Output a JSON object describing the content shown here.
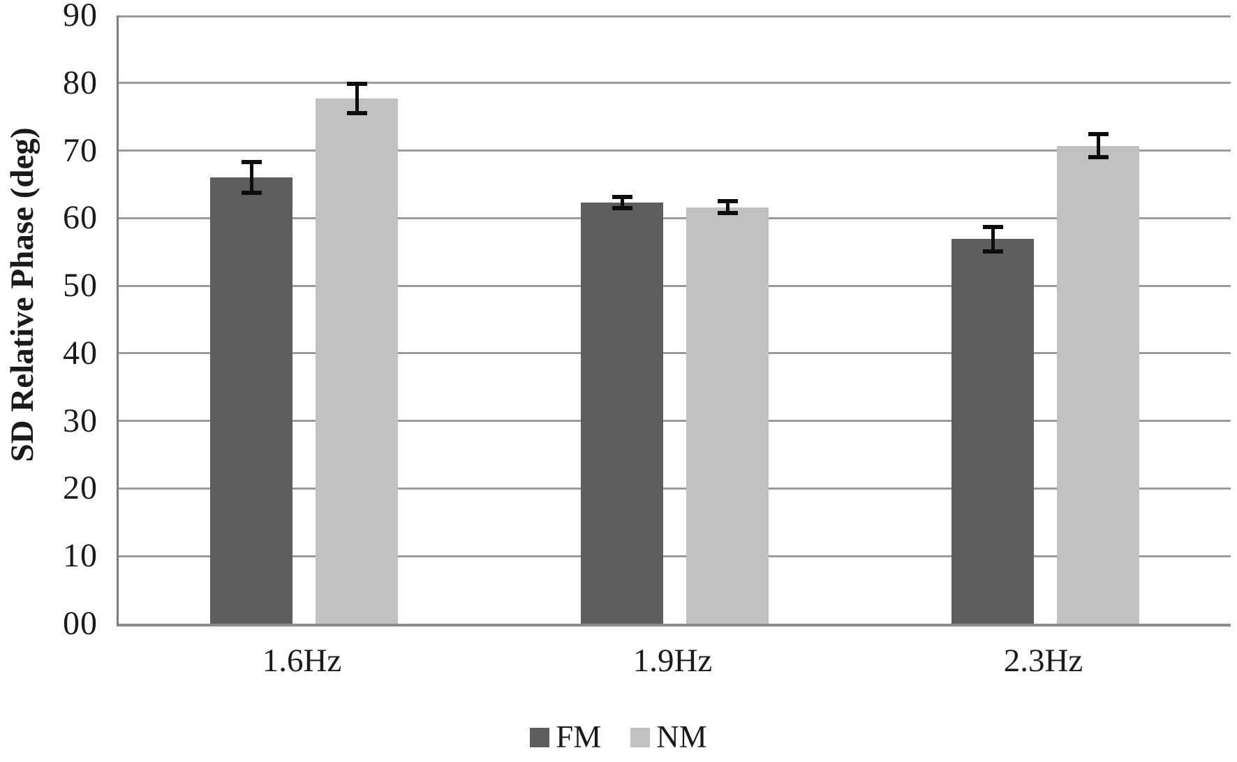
{
  "chart_data": {
    "type": "bar",
    "title": "",
    "categories": [
      "1.6Hz",
      "1.9Hz",
      "2.3Hz"
    ],
    "series": [
      {
        "name": "FM",
        "color": "#5d5d5d",
        "values": [
          66.0,
          62.3,
          56.9
        ],
        "errors": [
          2.6,
          1.1,
          2.1
        ]
      },
      {
        "name": "NM",
        "color": "#c1c1c1",
        "values": [
          77.7,
          61.6,
          70.7
        ],
        "errors": [
          2.5,
          1.2,
          2.0
        ]
      }
    ],
    "xlabel": "",
    "ylabel": "SD Relative Phase (deg)",
    "ylim": [
      0,
      90
    ],
    "ytick_step": 10,
    "ytick_labels": [
      "00",
      "10",
      "20",
      "30",
      "40",
      "50",
      "60",
      "70",
      "80",
      "90"
    ],
    "grid": true,
    "legend_position": "bottom",
    "colors": {
      "gridline": "#9b9b9b",
      "axis": "#8a8a8a",
      "error_bar": "#0d0d0d",
      "background": "#ffffff"
    }
  }
}
